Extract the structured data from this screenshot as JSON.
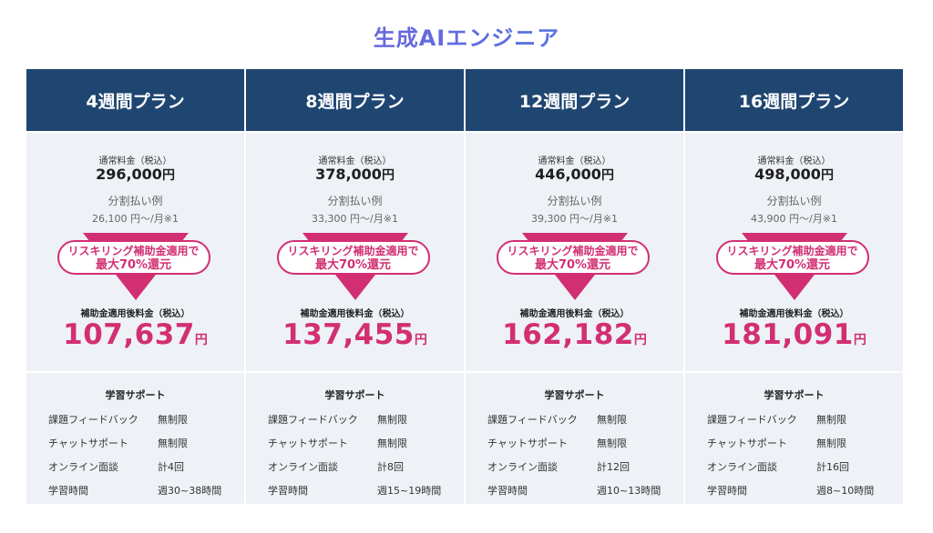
{
  "title": "生成AIエンジニア",
  "labels": {
    "normal": "通常料金（税込）",
    "split": "分割払い例",
    "pill_line1": "リスキリング補助金適用で",
    "pill_line2": "最大70%還元",
    "after": "補助金適用後料金（税込）",
    "yen": "円",
    "support_title": "学習サポート"
  },
  "support_keys": [
    "課題フィードバック",
    "チャットサポート",
    "オンライン面談",
    "学習時間"
  ],
  "colors": {
    "header": "#1f4571",
    "accent": "#d22f73",
    "panel": "#eef1f6"
  },
  "plans": [
    {
      "name": "4週間プラン",
      "normal_price": "296,000",
      "split_amount": "26,100 円〜/月※1",
      "after_price": "107,637",
      "support": [
        "無制限",
        "無制限",
        "計4回",
        "週30~38時間"
      ]
    },
    {
      "name": "8週間プラン",
      "normal_price": "378,000",
      "split_amount": "33,300 円〜/月※1",
      "after_price": "137,455",
      "support": [
        "無制限",
        "無制限",
        "計8回",
        "週15~19時間"
      ]
    },
    {
      "name": "12週間プラン",
      "normal_price": "446,000",
      "split_amount": "39,300 円〜/月※1",
      "after_price": "162,182",
      "support": [
        "無制限",
        "無制限",
        "計12回",
        "週10~13時間"
      ]
    },
    {
      "name": "16週間プラン",
      "normal_price": "498,000",
      "split_amount": "43,900 円〜/月※1",
      "after_price": "181,091",
      "support": [
        "無制限",
        "無制限",
        "計16回",
        "週8~10時間"
      ]
    }
  ]
}
